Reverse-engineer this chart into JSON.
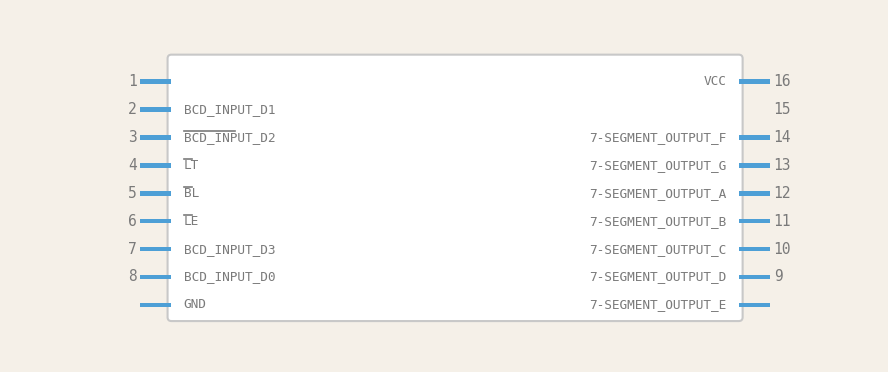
{
  "bg_color": "#f5f0e8",
  "box_color": "#c8c8c8",
  "box_bg": "#ffffff",
  "pin_color": "#4d9fd6",
  "text_color": "#7a7a7a",
  "pin_number_color": "#7a7a7a",
  "left_pins": [
    {
      "num": 1,
      "label": "",
      "row": 0,
      "has_bar": false,
      "has_stub": true
    },
    {
      "num": 2,
      "label": "BCD_INPUT_D1",
      "row": 1,
      "has_bar": false,
      "has_stub": true
    },
    {
      "num": 3,
      "label": "BCD_INPUT_D2",
      "row": 2,
      "has_bar": true,
      "has_stub": true
    },
    {
      "num": 4,
      "label": "LT",
      "row": 3,
      "has_bar": true,
      "has_stub": true
    },
    {
      "num": 5,
      "label": "BL",
      "row": 4,
      "has_bar": true,
      "has_stub": true
    },
    {
      "num": 6,
      "label": "LE",
      "row": 5,
      "has_bar": true,
      "has_stub": true
    },
    {
      "num": 7,
      "label": "BCD_INPUT_D3",
      "row": 6,
      "has_bar": false,
      "has_stub": true
    },
    {
      "num": 8,
      "label": "BCD_INPUT_D0",
      "row": 7,
      "has_bar": false,
      "has_stub": true
    },
    {
      "num": -1,
      "label": "GND",
      "row": 8,
      "has_bar": false,
      "has_stub": true
    }
  ],
  "right_pins": [
    {
      "num": 16,
      "label": "VCC",
      "row": 0,
      "has_bar": false,
      "has_stub": true
    },
    {
      "num": 15,
      "label": "",
      "row": 1,
      "has_bar": false,
      "has_stub": false
    },
    {
      "num": 14,
      "label": "7-SEGMENT_OUTPUT_F",
      "row": 2,
      "has_bar": false,
      "has_stub": true
    },
    {
      "num": 13,
      "label": "7-SEGMENT_OUTPUT_G",
      "row": 3,
      "has_bar": false,
      "has_stub": true
    },
    {
      "num": 12,
      "label": "7-SEGMENT_OUTPUT_A",
      "row": 4,
      "has_bar": false,
      "has_stub": true
    },
    {
      "num": 11,
      "label": "7-SEGMENT_OUTPUT_B",
      "row": 5,
      "has_bar": false,
      "has_stub": true
    },
    {
      "num": 10,
      "label": "7-SEGMENT_OUTPUT_C",
      "row": 6,
      "has_bar": false,
      "has_stub": true
    },
    {
      "num": 9,
      "label": "7-SEGMENT_OUTPUT_D",
      "row": 7,
      "has_bar": false,
      "has_stub": true
    },
    {
      "num": -1,
      "label": "7-SEGMENT_OUTPUT_E",
      "row": 8,
      "has_bar": false,
      "has_stub": true
    }
  ],
  "font_family": "monospace",
  "font_size": 9.2,
  "pin_num_font_size": 10.5
}
